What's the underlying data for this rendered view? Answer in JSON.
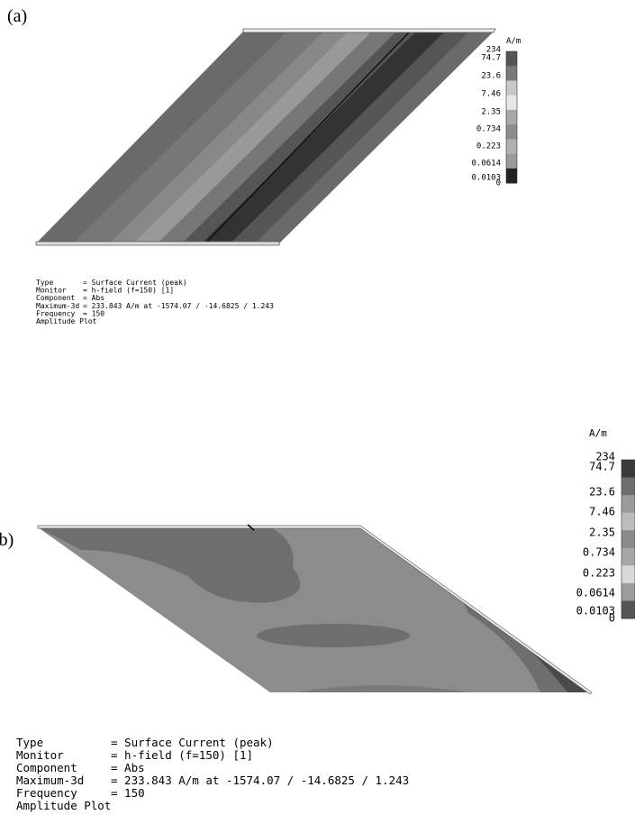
{
  "panels": [
    {
      "label": "(a)",
      "unit": "A/m",
      "colorbar_labels": [
        "234",
        "74.7",
        "23.6",
        "7.46",
        "2.35",
        "0.734",
        "0.223",
        "0.0614",
        "0.0103",
        "0"
      ],
      "colorbar_colors": [
        "#555555",
        "#7a7a7a",
        "#c8c8c8",
        "#e6e6e6",
        "#a8a8a8",
        "#8c8c8c",
        "#b0b0b0",
        "#9a9a9a",
        "#222222"
      ],
      "info": [
        [
          "Type",
          "= Surface Current (peak)"
        ],
        [
          "Monitor",
          "= h-field (f=150) [1]"
        ],
        [
          "Component",
          "= Abs"
        ],
        [
          "Maximum-3d",
          "= 233.843 A/m at -1574.07 / -14.6825 / 1.243"
        ],
        [
          "Frequency",
          "= 150"
        ]
      ],
      "footer": "Amplitude Plot"
    },
    {
      "label": "(b)",
      "unit": "A/m",
      "colorbar_labels": [
        "234",
        "74.7",
        "23.6",
        "7.46",
        "2.35",
        "0.734",
        "0.223",
        "0.0614",
        "0.0103",
        "0"
      ],
      "colorbar_colors": [
        "#3a3a3a",
        "#6e6e6e",
        "#9a9a9a",
        "#bcbcbc",
        "#8a8a8a",
        "#a6a6a6",
        "#d8d8d8",
        "#9c9c9c",
        "#555555"
      ],
      "info": [
        [
          "Type",
          "= Surface Current (peak)"
        ],
        [
          "Monitor",
          "= h-field (f=150) [1]"
        ],
        [
          "Component",
          "= Abs"
        ],
        [
          "Maximum-3d",
          "= 233.843 A/m at -1574.07 / -14.6825 / 1.243"
        ],
        [
          "Frequency",
          "= 150"
        ]
      ],
      "footer": "Amplitude Plot"
    }
  ]
}
